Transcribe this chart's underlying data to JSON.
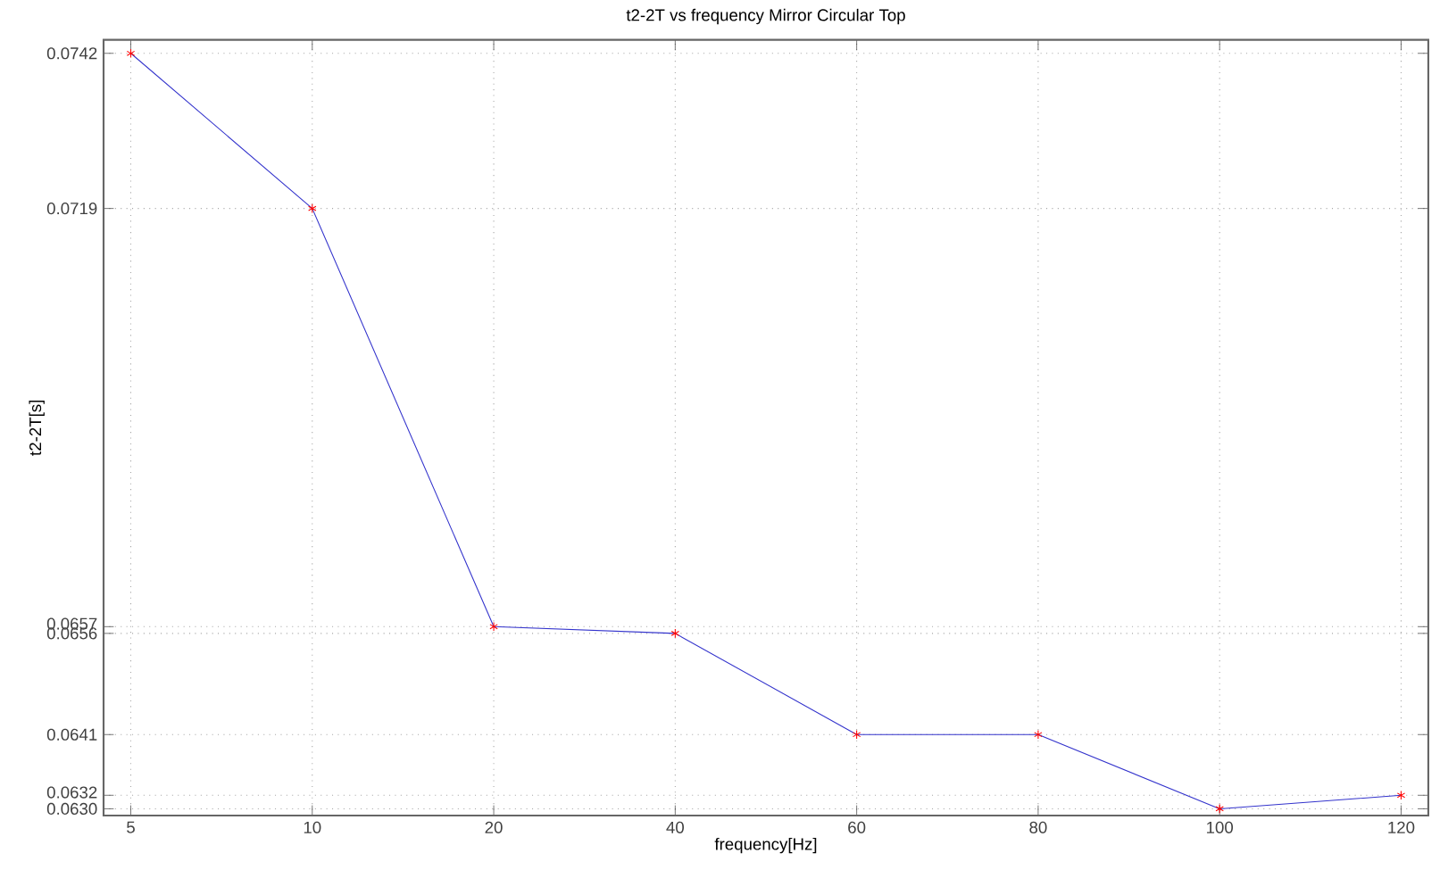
{
  "chart_data": {
    "type": "line",
    "title": "t2-2T vs frequency Mirror Circular Top",
    "xlabel": "frequency[Hz]",
    "ylabel": "t2-2T[s]",
    "categories": [
      "5",
      "10",
      "20",
      "40",
      "60",
      "80",
      "100",
      "120"
    ],
    "series": [
      {
        "color": "#3333cc",
        "values": [
          0.0742,
          0.0719,
          0.0657,
          0.0656,
          0.0641,
          0.0641,
          0.063,
          0.0632
        ]
      }
    ],
    "ylim": [
      0.0629,
      0.0744
    ],
    "yticks": [
      {
        "value": 0.063,
        "label": "0.0630"
      },
      0.0632,
      0.0641,
      0.0656,
      0.0657,
      0.0719,
      0.0742
    ],
    "grid": true,
    "marker": "cross",
    "line_style": "solid"
  }
}
